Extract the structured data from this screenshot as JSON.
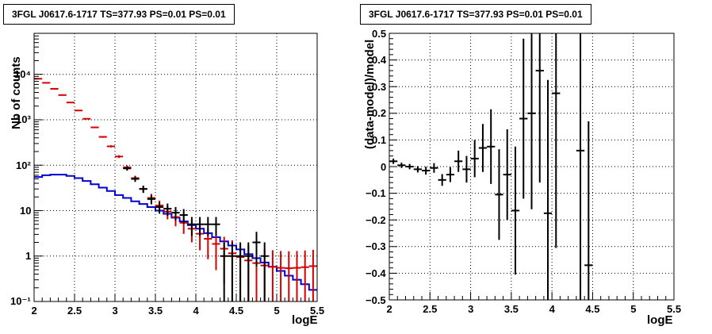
{
  "chart_data": [
    {
      "type": "histogram",
      "title": "3FGL J0617.6-1717 TS=377.93 PS=0.01 PS=0.01",
      "xlabel": "logE",
      "ylabel": "Nb of counts",
      "xlim": [
        2,
        5.5
      ],
      "ylim": [
        0.1,
        80000
      ],
      "yscale": "log",
      "grid": true,
      "x_ticks": [
        "2",
        "2.5",
        "3",
        "3.5",
        "4",
        "4.5",
        "5",
        "5.5"
      ],
      "y_ticks": [
        {
          "value": 0.1,
          "label": "10⁻¹"
        },
        {
          "value": 1,
          "label": "1"
        },
        {
          "value": 10,
          "label": "10"
        },
        {
          "value": 100,
          "label": "10²"
        },
        {
          "value": 1000,
          "label": "10³"
        },
        {
          "value": 10000,
          "label": "10⁴"
        }
      ],
      "series": [
        {
          "color": "#d40000",
          "style": "points-errorbars",
          "x": [
            2.05,
            2.15,
            2.25,
            2.35,
            2.45,
            2.55,
            2.65,
            2.75,
            2.85,
            2.95,
            3.05,
            3.15,
            3.25,
            3.35,
            3.45,
            3.55,
            3.65,
            3.75,
            3.85,
            3.95,
            4.05,
            4.15,
            4.25,
            4.35,
            4.45,
            4.55,
            4.65,
            4.75,
            4.85,
            4.95,
            5.05,
            5.15,
            5.25,
            5.35,
            5.45
          ],
          "y": [
            8000,
            6500,
            4800,
            3500,
            2400,
            1600,
            1050,
            680,
            420,
            260,
            155,
            90,
            52,
            30,
            19,
            13,
            9.5,
            7.2,
            5.4,
            4.0,
            3.1,
            2.4,
            1.85,
            1.45,
            1.15,
            0.95,
            0.8,
            0.7,
            0.62,
            0.58,
            0.55,
            0.54,
            0.55,
            0.57,
            0.6
          ]
        },
        {
          "color": "#000000",
          "style": "points-errorbars",
          "x": [
            3.15,
            3.25,
            3.35,
            3.45,
            3.55,
            3.65,
            3.75,
            3.85,
            3.95,
            4.05,
            4.15,
            4.25,
            4.35,
            4.45,
            4.55,
            4.65,
            4.75,
            4.85
          ],
          "y": [
            85,
            50,
            30,
            18,
            12,
            11,
            9,
            8,
            5,
            5,
            5,
            5,
            1,
            1,
            1,
            1,
            2,
            1
          ]
        },
        {
          "color": "#0000d0",
          "style": "step",
          "x": [
            2.05,
            2.15,
            2.25,
            2.35,
            2.45,
            2.55,
            2.65,
            2.75,
            2.85,
            2.95,
            3.05,
            3.15,
            3.25,
            3.35,
            3.45,
            3.55,
            3.65,
            3.75,
            3.85,
            3.95,
            4.05,
            4.15,
            4.25,
            4.35,
            4.45,
            4.55,
            4.65,
            4.75,
            4.85,
            4.95,
            5.05,
            5.15,
            5.25,
            5.35,
            5.45
          ],
          "y": [
            55,
            60,
            62,
            62,
            58,
            52,
            45,
            38,
            32,
            27,
            22,
            19,
            16,
            14,
            12,
            10,
            8.5,
            7,
            5.8,
            4.8,
            4.0,
            3.2,
            2.6,
            2.1,
            1.7,
            1.4,
            1.1,
            0.9,
            0.72,
            0.58,
            0.47,
            0.37,
            0.3,
            0.24,
            0.18
          ]
        }
      ]
    },
    {
      "type": "scatter",
      "title": "3FGL J0617.6-1717 TS=377.93 PS=0.01 PS=0.01",
      "xlabel": "logE",
      "ylabel": "(data-model)/model",
      "xlim": [
        2,
        5.5
      ],
      "ylim": [
        -0.5,
        0.5
      ],
      "grid": true,
      "x_ticks": [
        "2",
        "2.5",
        "3",
        "3.5",
        "4",
        "4.5",
        "5",
        "5.5"
      ],
      "y_ticks": [
        "−0.5",
        "−0.4",
        "−0.3",
        "−0.2",
        "−0.1",
        "0",
        "0.1",
        "0.2",
        "0.3",
        "0.4",
        "0.5"
      ],
      "series": [
        {
          "color": "#000000",
          "style": "points-errorbars",
          "x": [
            2.05,
            2.15,
            2.25,
            2.35,
            2.45,
            2.55,
            2.65,
            2.75,
            2.85,
            2.95,
            3.05,
            3.15,
            3.25,
            3.35,
            3.45,
            3.55,
            3.65,
            3.75,
            3.85,
            3.95,
            4.05,
            4.35,
            4.45
          ],
          "y": [
            0.02,
            0.005,
            0.0,
            -0.01,
            -0.015,
            -0.005,
            -0.05,
            -0.03,
            0.02,
            -0.01,
            0.03,
            0.07,
            0.075,
            -0.105,
            -0.03,
            -0.165,
            0.18,
            0.2,
            0.36,
            -0.175,
            0.275,
            0.06,
            -0.37
          ],
          "err": [
            0.01,
            0.01,
            0.01,
            0.012,
            0.015,
            0.018,
            0.022,
            0.028,
            0.04,
            0.05,
            0.07,
            0.09,
            0.14,
            0.17,
            0.17,
            0.24,
            0.3,
            0.36,
            0.42,
            0.5,
            0.58,
            0.56,
            0.54
          ]
        }
      ]
    }
  ]
}
